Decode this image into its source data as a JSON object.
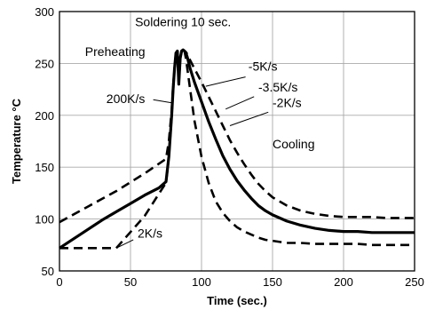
{
  "chart_data": {
    "type": "line",
    "xlabel": "Time (sec.)",
    "ylabel": "Temperature °C",
    "xlim": [
      0,
      250
    ],
    "ylim": [
      50,
      300
    ],
    "xticks": [
      "0",
      "50",
      "100",
      "150",
      "200",
      "250"
    ],
    "yticks": [
      "50",
      "100",
      "150",
      "200",
      "250",
      "300"
    ],
    "grid": true,
    "series": [
      {
        "style": "solid",
        "width": 3.2,
        "x": [
          0,
          10,
          20,
          30,
          40,
          50,
          60,
          70,
          75,
          77,
          79,
          80,
          81,
          82,
          83,
          84,
          85,
          86,
          87,
          88,
          89,
          90,
          92,
          95,
          100,
          105,
          110,
          115,
          120,
          125,
          130,
          135,
          140,
          145,
          150,
          160,
          170,
          180,
          190,
          200,
          210,
          220,
          230,
          240,
          250
        ],
        "y": [
          72,
          81,
          90,
          99,
          107,
          115,
          123,
          130,
          136,
          160,
          200,
          225,
          245,
          260,
          262,
          230,
          255,
          262,
          263,
          262,
          260,
          256,
          245,
          232,
          213,
          194,
          177,
          161,
          148,
          137,
          128,
          120,
          113,
          108,
          104,
          98,
          94,
          91,
          89,
          88,
          88,
          87,
          87,
          87,
          87
        ]
      },
      {
        "style": "dashed",
        "width": 2.6,
        "x": [
          0,
          20,
          40,
          60,
          75,
          77,
          79,
          80,
          81,
          82,
          83,
          84,
          85,
          86,
          87,
          88,
          89,
          90,
          92,
          95,
          100,
          105,
          110,
          115,
          120,
          125,
          130,
          135,
          140,
          145,
          150,
          160,
          170,
          180,
          190,
          200,
          210,
          220,
          230,
          240,
          250
        ],
        "y": [
          97,
          112,
          127,
          144,
          158,
          175,
          205,
          228,
          245,
          260,
          262,
          230,
          255,
          262,
          263,
          262,
          261,
          259,
          253,
          245,
          232,
          218,
          204,
          190,
          176,
          164,
          153,
          143,
          134,
          127,
          121,
          113,
          108,
          105,
          103,
          102,
          102,
          102,
          101,
          101,
          101
        ]
      },
      {
        "style": "dashed",
        "width": 2.6,
        "x": [
          0,
          20,
          40,
          60,
          75,
          77,
          79,
          80,
          81,
          82,
          83,
          84,
          85,
          86,
          87,
          88,
          89,
          90,
          92,
          95,
          100,
          105,
          110,
          115,
          120,
          125,
          130,
          135,
          140,
          145,
          150,
          160,
          170,
          180,
          190,
          200,
          210,
          220,
          230,
          240,
          250
        ],
        "y": [
          72,
          72,
          72,
          103,
          135,
          160,
          200,
          225,
          245,
          260,
          262,
          230,
          255,
          262,
          263,
          262,
          255,
          245,
          225,
          195,
          160,
          135,
          117,
          106,
          98,
          92,
          88,
          85,
          82,
          80,
          79,
          77,
          77,
          76,
          76,
          76,
          76,
          75,
          75,
          75,
          75
        ]
      }
    ],
    "annotations": [
      {
        "text": "Soldering 10 sec.",
        "x": 87,
        "y": 286
      },
      {
        "text": "Preheating",
        "x": 18,
        "y": 257
      },
      {
        "text": "200K/s",
        "x": 33,
        "y": 212
      },
      {
        "text": "-5K/s",
        "x": 133,
        "y": 243
      },
      {
        "text": "-3.5K/s",
        "x": 140,
        "y": 223
      },
      {
        "text": "-2K/s",
        "x": 150,
        "y": 208
      },
      {
        "text": "Cooling",
        "x": 150,
        "y": 168
      },
      {
        "text": "2K/s",
        "x": 55,
        "y": 82
      }
    ]
  }
}
